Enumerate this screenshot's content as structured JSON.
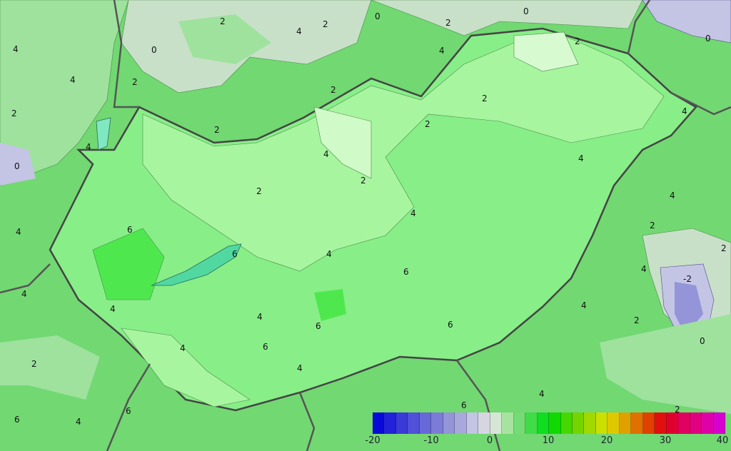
{
  "map": {
    "contour_labels": [
      "0",
      "2",
      "2",
      "2",
      "4",
      "4",
      "4",
      "2",
      "0",
      "0",
      "2",
      "0",
      "4",
      "2",
      "2",
      "2",
      "4",
      "2",
      "0",
      "2",
      "4",
      "2",
      "4",
      "2",
      "4",
      "4",
      "6",
      "4",
      "6",
      "4",
      "4",
      "6",
      "6",
      "4",
      "4",
      "4",
      "6",
      "4",
      "6",
      "2",
      "2",
      "4",
      "6",
      "6",
      "4",
      "4",
      "2",
      "-2",
      "2",
      "0",
      "4",
      "2",
      "4",
      "6"
    ]
  },
  "legend": {
    "ticks": [
      "-20",
      "-10",
      "0",
      "10",
      "20",
      "30",
      "40"
    ],
    "colors": [
      "#0a0ad8",
      "#2222d8",
      "#3a3ad8",
      "#5050d8",
      "#6868d8",
      "#7c7cd8",
      "#9494d8",
      "#a8a8dc",
      "#c4c4e4",
      "#d6d6e0",
      "#d6e6d6",
      "#a8e2a0",
      "#74dc74",
      "#40dc48",
      "#10dc20",
      "#10d800",
      "#44d800",
      "#74d400",
      "#a0d800",
      "#cce000",
      "#e0c800",
      "#e0a000",
      "#e07000",
      "#e04000",
      "#e01010",
      "#e00030",
      "#e00060",
      "#e00080",
      "#e000a8",
      "#d800d0"
    ]
  }
}
